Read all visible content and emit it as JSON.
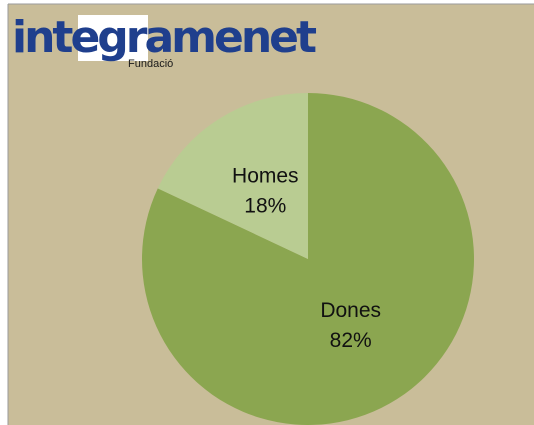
{
  "chart_data": {
    "type": "pie",
    "annotations": [
      "integramenet",
      "Fundació"
    ],
    "categories": [
      "Dones",
      "Homes"
    ],
    "values": [
      82,
      18
    ],
    "value_labels": [
      "82%",
      "18%"
    ],
    "colors": [
      "#8ba650",
      "#b9cc92"
    ],
    "start": "top",
    "direction": "clockwise"
  }
}
